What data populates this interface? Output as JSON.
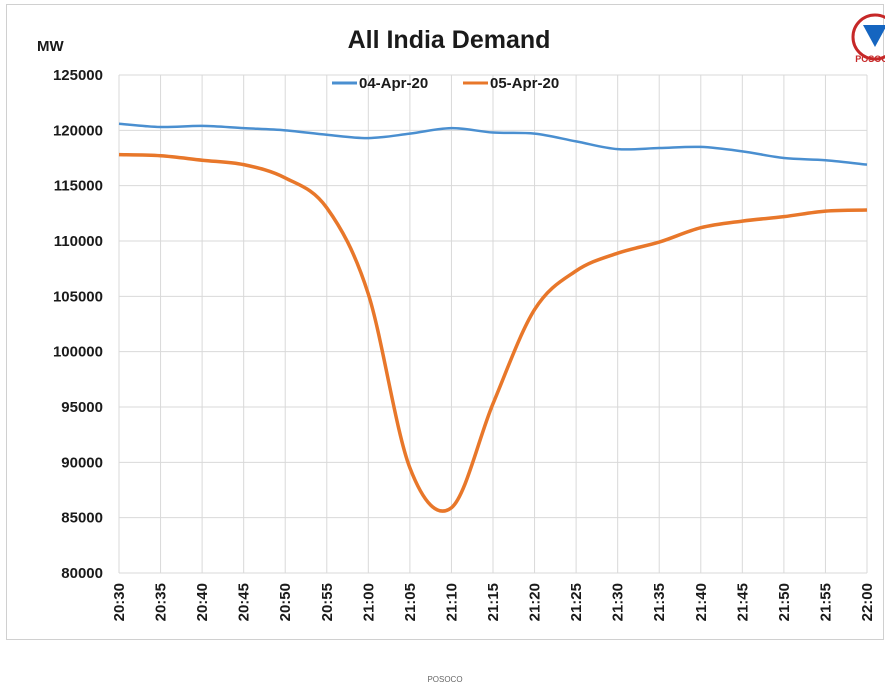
{
  "header": {
    "title": "All India Demand",
    "unit": "MW"
  },
  "footer": {
    "credit": "POSOCO"
  },
  "logo": {
    "text": "POSOCO",
    "colors": {
      "ring": "#c62828",
      "fill": "#1565c0"
    }
  },
  "chart_data": {
    "type": "line",
    "title": "All India Demand",
    "ylabel": "MW",
    "xlabel": "",
    "ylim": [
      80000,
      125000
    ],
    "ytick_step": 5000,
    "grid": true,
    "legend_position": "top-center",
    "x": [
      "20:30",
      "20:35",
      "20:40",
      "20:45",
      "20:50",
      "20:55",
      "21:00",
      "21:05",
      "21:10",
      "21:15",
      "21:20",
      "21:25",
      "21:30",
      "21:35",
      "21:40",
      "21:45",
      "21:50",
      "21:55",
      "22:00"
    ],
    "series": [
      {
        "name": "04-Apr-20",
        "color": "#4a8fd0",
        "values": [
          120600,
          120300,
          120400,
          120200,
          120000,
          119600,
          119300,
          119700,
          120200,
          119800,
          119700,
          119000,
          118300,
          118400,
          118500,
          118100,
          117500,
          117300,
          116900
        ]
      },
      {
        "name": "05-Apr-20",
        "color": "#e8772a",
        "values": [
          117800,
          117700,
          117300,
          116900,
          115700,
          113000,
          105200,
          89500,
          85900,
          95300,
          103800,
          107300,
          108900,
          109900,
          111200,
          111800,
          112200,
          112700,
          112800
        ]
      }
    ]
  }
}
